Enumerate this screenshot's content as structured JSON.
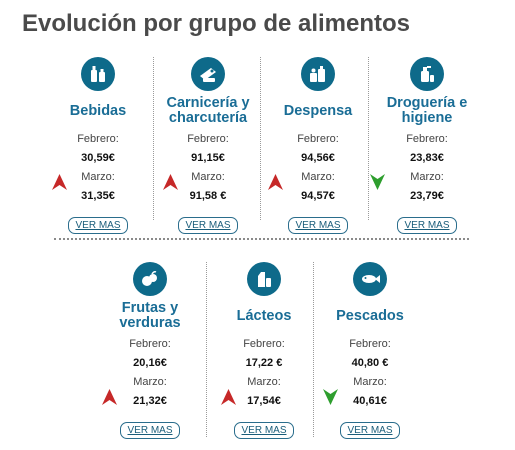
{
  "title": "Evolución por grupo de alimentos",
  "colors": {
    "accent": "#0e6a8a",
    "up": "#c62828",
    "down": "#2e9e2e"
  },
  "labels": {
    "feb": "Febrero:",
    "mar": "Marzo:",
    "more": "VER MAS"
  },
  "cards": [
    {
      "name": "Bebidas",
      "feb": "30,59€",
      "mar": "31,35€",
      "trend": "up",
      "icon": "bottles-icon"
    },
    {
      "name": "Carnicería y charcutería",
      "feb": "91,15€",
      "mar": "91,58 €",
      "trend": "up",
      "icon": "meat-icon"
    },
    {
      "name": "Despensa",
      "feb": "94,56€",
      "mar": "94,57€",
      "trend": "up",
      "icon": "pantry-icon"
    },
    {
      "name": "Droguería e higiene",
      "feb": "23,83€",
      "mar": "23,79€",
      "trend": "down",
      "icon": "cleaning-icon"
    },
    {
      "name": "Frutas y verduras",
      "feb": "20,16€",
      "mar": "21,32€",
      "trend": "up",
      "icon": "fruits-icon"
    },
    {
      "name": "Lácteos",
      "feb": "17,22 €",
      "mar": "17,54€",
      "trend": "up",
      "icon": "dairy-icon"
    },
    {
      "name": "Pescados",
      "feb": "40,80 €",
      "mar": "40,61€",
      "trend": "down",
      "icon": "fish-icon"
    }
  ]
}
